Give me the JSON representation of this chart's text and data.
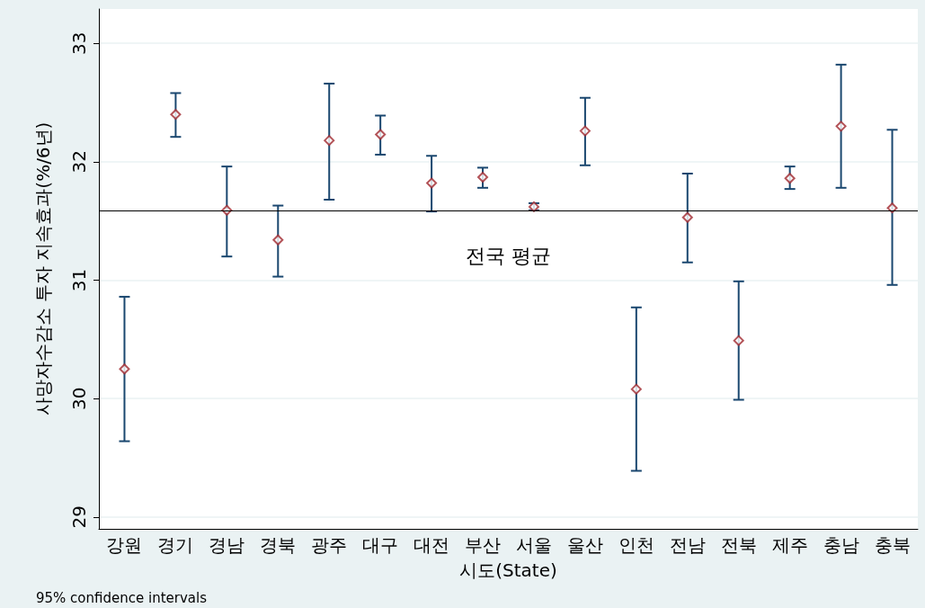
{
  "chart_data": {
    "type": "scatter",
    "xlabel": "시도(State)",
    "ylabel": "사망자수감소 투자 지속효과(%/6년)",
    "categories": [
      "강원",
      "경기",
      "경남",
      "경북",
      "광주",
      "대구",
      "대전",
      "부산",
      "서울",
      "울산",
      "인천",
      "전남",
      "전북",
      "제주",
      "충남",
      "충북"
    ],
    "values": [
      30.25,
      32.4,
      31.59,
      31.34,
      32.18,
      32.23,
      31.82,
      31.87,
      31.62,
      32.26,
      30.08,
      31.53,
      30.49,
      31.86,
      32.3,
      31.61
    ],
    "errors": [
      [
        29.64,
        30.86
      ],
      [
        32.21,
        32.58
      ],
      [
        31.2,
        31.96
      ],
      [
        31.03,
        31.63
      ],
      [
        31.68,
        32.66
      ],
      [
        32.06,
        32.39
      ],
      [
        31.58,
        32.05
      ],
      [
        31.78,
        31.95
      ],
      [
        31.59,
        31.65
      ],
      [
        31.97,
        32.54
      ],
      [
        29.39,
        30.77
      ],
      [
        31.15,
        31.9
      ],
      [
        29.99,
        30.99
      ],
      [
        31.77,
        31.96
      ],
      [
        31.78,
        32.82
      ],
      [
        30.96,
        32.27
      ]
    ],
    "color": "#a0282e",
    "marker": "diamond",
    "ylim": [
      28.9,
      33.29
    ],
    "yticks": [
      29,
      30,
      31,
      32,
      33
    ],
    "grid": "y",
    "ref_lines": [
      {
        "axis": "y",
        "value": 31.59,
        "label": "전국 평균"
      }
    ],
    "annotations": [
      "95% confidence intervals"
    ]
  }
}
